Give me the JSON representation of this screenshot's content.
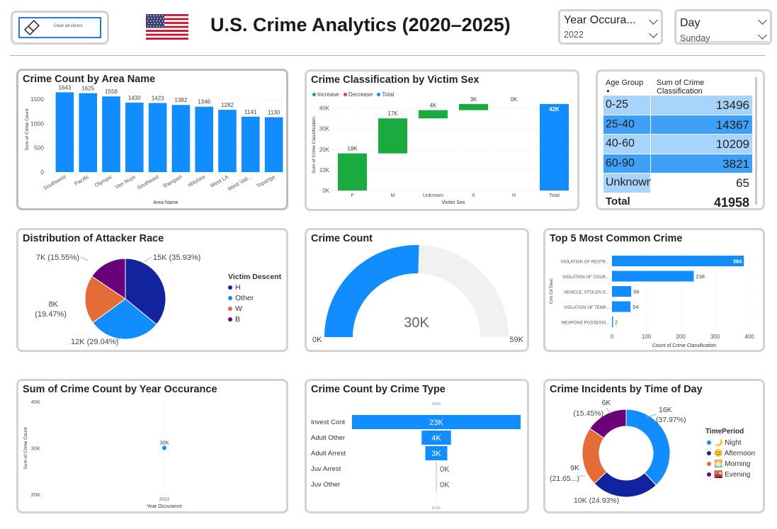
{
  "header": {
    "clear_button_label": "Clear all slicers",
    "title": "U.S. Crime Analytics (2020–2025)",
    "flag_icon": "us-flag-icon",
    "slicers": [
      {
        "label": "Year Occura...",
        "value": "2022"
      },
      {
        "label": "Day",
        "value": "Sunday"
      }
    ]
  },
  "colors": {
    "primary": "#118dff",
    "navy": "#12239e",
    "orange": "#e66c37",
    "purple": "#6b007b",
    "green": "#1aab40",
    "table_light": "#a7d4fb",
    "table_dark": "#3ea0f6"
  },
  "area_chart": {
    "title": "Crime Count by Area Name",
    "chart_data": {
      "type": "bar",
      "categories": [
        "Southwest",
        "Pacific",
        "Olympic",
        "Van Nuys",
        "Southeast",
        "Rampart",
        "Wilshire",
        "West LA",
        "West Vall...",
        "Topanga"
      ],
      "values": [
        1643,
        1625,
        1558,
        1430,
        1423,
        1382,
        1346,
        1282,
        1141,
        1130
      ],
      "xlabel": "Area Name",
      "ylabel": "Sum of Crime Count",
      "yticks": [
        "0",
        "500",
        "1000",
        "1500"
      ],
      "ylim": [
        0,
        1750
      ]
    }
  },
  "waterfall": {
    "title": "Crime Classification by Victim Sex",
    "legend": [
      {
        "label": "Increase",
        "color": "#1aab40"
      },
      {
        "label": "Decrease",
        "color": "#d64550"
      },
      {
        "label": "Total",
        "color": "#118dff"
      }
    ],
    "chart_data": {
      "type": "waterfall",
      "categories": [
        "F",
        "M",
        "Unknown",
        "X",
        "H",
        "Total"
      ],
      "values": [
        18000,
        17000,
        4000,
        3000,
        0,
        42000
      ],
      "labels": [
        "18K",
        "17K",
        "4K",
        "3K",
        "0K",
        "42K"
      ],
      "xlabel": "Victim Sex",
      "ylabel": "Sum of Crime Classification",
      "yticks": [
        "0K",
        "10K",
        "20K",
        "30K",
        "40K"
      ],
      "ylim": [
        0,
        44000
      ]
    }
  },
  "age_table": {
    "col1": "Age Group",
    "col2": "Sum of Crime Classification",
    "rows": [
      {
        "group": "0-25",
        "value": "13496"
      },
      {
        "group": "25-40",
        "value": "14367"
      },
      {
        "group": "40-60",
        "value": "10209"
      },
      {
        "group": "60-90",
        "value": "3821"
      },
      {
        "group": "Unknown",
        "value": "65"
      }
    ],
    "total_label": "Total",
    "total_value": "41958"
  },
  "attacker_pie": {
    "title": "Distribution of Attacker Race",
    "legend_title": "Victim Descent",
    "chart_data": {
      "type": "pie",
      "categories": [
        "H",
        "Other",
        "W",
        "B"
      ],
      "values": [
        35.93,
        29.04,
        19.47,
        15.55
      ],
      "labels": [
        "15K (35.93%)",
        "12K (29.04%)",
        "8K (19.47%)",
        "7K (15.55%)"
      ],
      "colors": [
        "#12239e",
        "#118dff",
        "#e66c37",
        "#6b007b"
      ]
    }
  },
  "gauge": {
    "title": "Crime Count",
    "chart_data": {
      "type": "gauge",
      "value": 30000,
      "min": 0,
      "max": 59000,
      "value_label": "30K",
      "min_label": "0K",
      "max_label": "59K"
    }
  },
  "top5": {
    "title": "Top 5 Most Common Crime",
    "chart_data": {
      "type": "bar",
      "orientation": "horizontal",
      "categories": [
        "VIOLATION OF RESTR...",
        "VIOLATION OF COUR...",
        "VEHICLE, STOLEN    O...",
        "VIOLATION OF TEMP...",
        "WEAPONS POSSESSI..."
      ],
      "values": [
        384,
        238,
        56,
        54,
        2
      ],
      "xlabel": "Count of Crime Classification",
      "ylabel": "Crm Cd Desc",
      "xticks": [
        "0",
        "100",
        "200",
        "300",
        "400"
      ],
      "xlim": [
        0,
        400
      ]
    }
  },
  "year_scatter": {
    "title": "Sum of Crime Count by Year Occurance",
    "chart_data": {
      "type": "scatter",
      "x": [
        "2022"
      ],
      "y": [
        30000
      ],
      "point_labels": [
        "30K"
      ],
      "xlabel": "Year Occurance",
      "ylabel": "Sum of Crime Count",
      "yticks": [
        "20K",
        "30K",
        "40K"
      ],
      "ylim": [
        20000,
        40000
      ]
    }
  },
  "crime_type": {
    "title": "Crime Count by Crime Type",
    "top_label": "100%",
    "bottom_label": "0.1%",
    "chart_data": {
      "type": "funnel",
      "categories": [
        "Invest Cont",
        "Adult Other",
        "Adult Arrest",
        "Juv Arrest",
        "Juv Other"
      ],
      "values": [
        23000,
        4000,
        3000,
        0,
        0
      ],
      "labels": [
        "23K",
        "4K",
        "3K",
        "0K",
        "0K"
      ]
    }
  },
  "time_donut": {
    "title": "Crime Incidents by Time of Day",
    "legend_title": "TimePeriod",
    "chart_data": {
      "type": "pie",
      "hole": true,
      "categories": [
        "Night",
        "Afternoon",
        "Morning",
        "Evening"
      ],
      "legend_emoji": [
        "🌙",
        "😊",
        "🌅",
        "🌇"
      ],
      "values": [
        37.97,
        24.93,
        21.65,
        15.45
      ],
      "labels": [
        "16K (37.97%)",
        "10K (24.93%)",
        "9K (21.65...)",
        "6K (15.45%)"
      ],
      "colors": [
        "#118dff",
        "#12239e",
        "#e66c37",
        "#6b007b"
      ]
    }
  }
}
